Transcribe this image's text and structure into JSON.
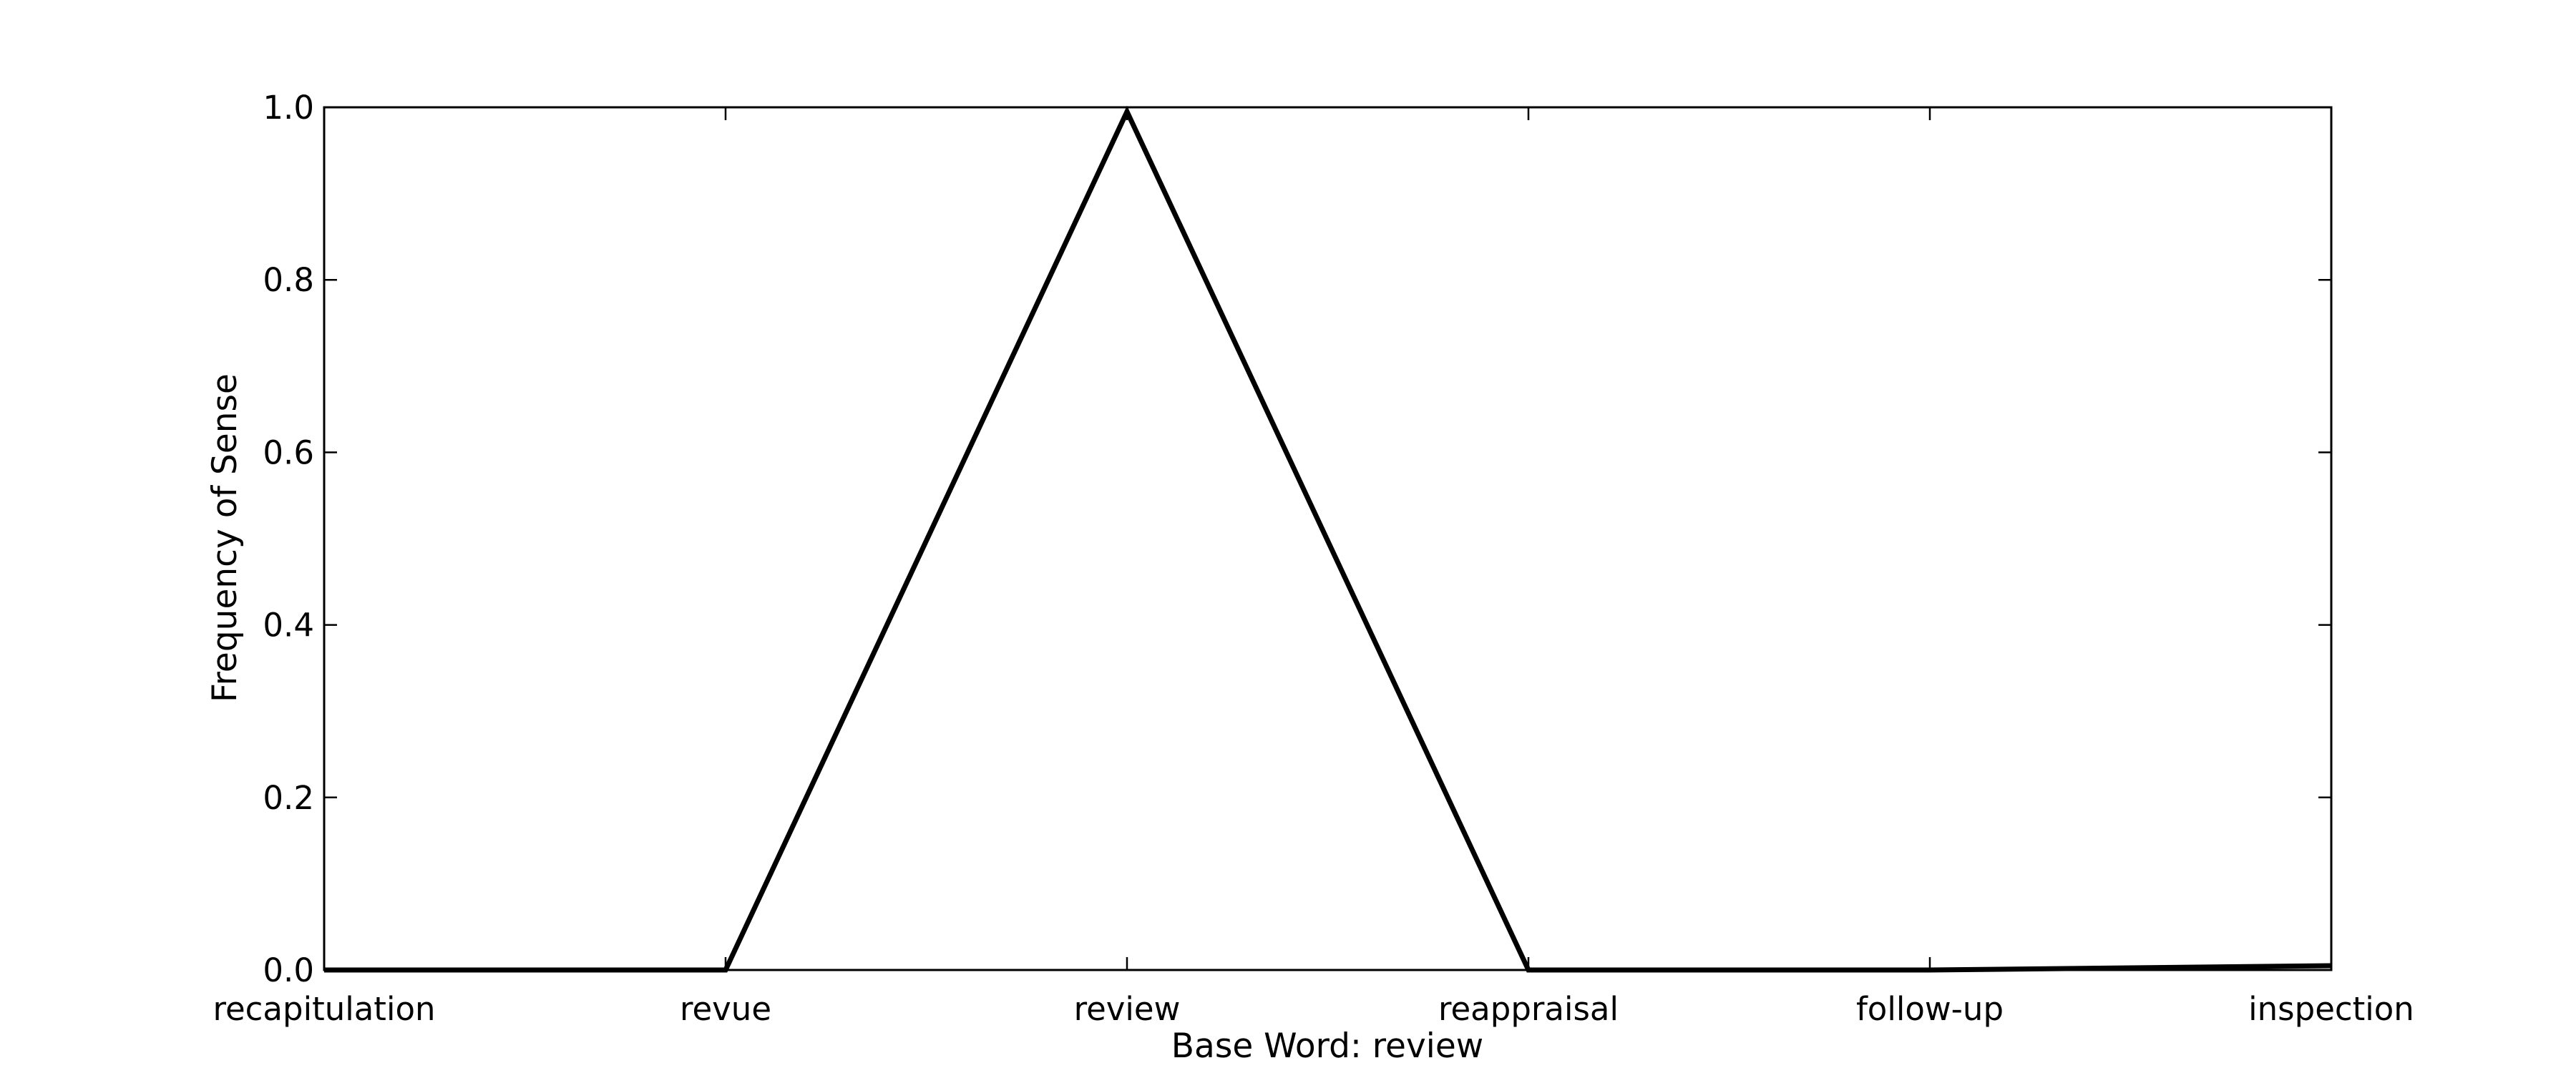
{
  "chart_data": {
    "type": "line",
    "title": "",
    "xlabel": "Base Word: review",
    "ylabel": "Frequency of Sense",
    "categories": [
      "recapitulation",
      "revue",
      "review",
      "reappraisal",
      "follow-up",
      "inspection"
    ],
    "series": [
      {
        "values": [
          0.0,
          0.0,
          0.995,
          0.0,
          0.0,
          0.005
        ],
        "color": "#000000"
      }
    ],
    "ylim": [
      0.0,
      1.0
    ],
    "yticks": [
      "0.0",
      "0.2",
      "0.4",
      "0.6",
      "0.8",
      "1.0"
    ],
    "grid": false,
    "legend": "none"
  }
}
